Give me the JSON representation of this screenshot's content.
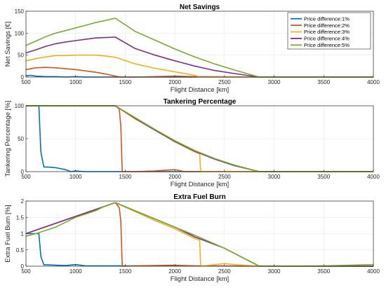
{
  "colors": {
    "series": [
      "#0072BD",
      "#D95319",
      "#EDB120",
      "#7E2F8E",
      "#77AC30"
    ],
    "grid": "#e6e6e6",
    "axis": "#262626"
  },
  "legend": {
    "entries": [
      "Price difference:1%",
      "Price difference:2%",
      "Price difference:3%",
      "Price difference:4%",
      "Price difference:5%"
    ]
  },
  "chart_data": [
    {
      "type": "line",
      "title": "Net Savings",
      "xlabel": "Flight Distance [km]",
      "ylabel": "Net Savings [€]",
      "xlim": [
        500,
        4000
      ],
      "ylim": [
        0,
        150
      ],
      "xticks": [
        500,
        1000,
        1500,
        2000,
        2500,
        3000,
        3500,
        4000
      ],
      "yticks": [
        0,
        50,
        100,
        150
      ],
      "grid": true,
      "legend_position": "top-right",
      "series": [
        {
          "name": "Price difference:1%",
          "x": [
            500,
            550,
            600,
            700,
            800,
            900,
            1000,
            1100,
            1200,
            1300,
            1400,
            1500,
            2000,
            2850,
            4000
          ],
          "y": [
            3,
            4,
            2,
            1,
            1,
            0,
            1,
            0,
            0,
            0,
            0,
            0,
            0,
            0,
            0
          ]
        },
        {
          "name": "Price difference:2%",
          "x": [
            500,
            550,
            600,
            700,
            800,
            900,
            1000,
            1100,
            1200,
            1300,
            1400,
            1460,
            1600,
            1800,
            2000,
            2200,
            2850,
            4000
          ],
          "y": [
            17,
            19,
            21,
            22,
            21,
            19,
            17,
            14,
            11,
            7,
            2,
            0,
            0,
            1,
            2,
            1,
            0,
            0
          ]
        },
        {
          "name": "Price difference:3%",
          "x": [
            500,
            600,
            700,
            800,
            900,
            1000,
            1100,
            1200,
            1300,
            1400,
            1600,
            1800,
            2000,
            2200,
            2250,
            2850,
            4000
          ],
          "y": [
            37,
            42,
            46,
            49,
            49,
            50,
            50,
            50,
            48,
            45,
            30,
            20,
            12,
            4,
            0,
            0,
            0
          ]
        },
        {
          "name": "Price difference:4%",
          "x": [
            500,
            600,
            700,
            800,
            900,
            1000,
            1100,
            1200,
            1300,
            1400,
            1600,
            1800,
            2000,
            2200,
            2400,
            2600,
            2850,
            4000
          ],
          "y": [
            55,
            62,
            70,
            76,
            80,
            83,
            86,
            89,
            90,
            91,
            65,
            50,
            37,
            25,
            15,
            8,
            0,
            0
          ]
        },
        {
          "name": "Price difference:5%",
          "x": [
            500,
            600,
            700,
            800,
            900,
            1000,
            1100,
            1200,
            1300,
            1400,
            1600,
            1800,
            2000,
            2200,
            2400,
            2600,
            2850,
            4000
          ],
          "y": [
            72,
            82,
            92,
            100,
            106,
            112,
            118,
            124,
            129,
            134,
            104,
            84,
            64,
            46,
            30,
            16,
            0,
            0
          ]
        }
      ]
    },
    {
      "type": "line",
      "title": "Tankering Percentage",
      "xlabel": "Flight Distance [km]",
      "ylabel": "Tankering Percentage [%]",
      "xlim": [
        500,
        4000
      ],
      "ylim": [
        0,
        100
      ],
      "xticks": [
        500,
        1000,
        1500,
        2000,
        2500,
        3000,
        3500,
        4000
      ],
      "yticks": [
        0,
        50,
        100
      ],
      "grid": true,
      "series": [
        {
          "name": "Price difference:1%",
          "x": [
            500,
            630,
            650,
            680,
            720,
            800,
            900,
            950,
            1000,
            1100,
            1200,
            1400,
            4000
          ],
          "y": [
            100,
            100,
            30,
            7,
            7,
            6,
            3,
            0,
            1,
            0,
            0,
            0,
            0
          ]
        },
        {
          "name": "Price difference:2%",
          "x": [
            500,
            1400,
            1440,
            1455,
            1470,
            1600,
            1800,
            1900,
            2000,
            2100,
            2850,
            4000
          ],
          "y": [
            100,
            100,
            95,
            70,
            0,
            0,
            1,
            2,
            3,
            0,
            0,
            0
          ]
        },
        {
          "name": "Price difference:3%",
          "x": [
            500,
            1400,
            1600,
            1800,
            2000,
            2200,
            2250,
            2260,
            4000
          ],
          "y": [
            100,
            100,
            80,
            63,
            45,
            30,
            27,
            0,
            0
          ]
        },
        {
          "name": "Price difference:4%",
          "x": [
            500,
            1400,
            1600,
            1800,
            2000,
            2200,
            2400,
            2600,
            2850,
            4000
          ],
          "y": [
            100,
            100,
            81,
            63,
            46,
            31,
            19,
            9,
            0,
            0
          ]
        },
        {
          "name": "Price difference:5%",
          "x": [
            500,
            1400,
            1600,
            1800,
            2000,
            2200,
            2400,
            2600,
            2850,
            4000
          ],
          "y": [
            100,
            100,
            82,
            64,
            47,
            32,
            20,
            10,
            0,
            0
          ]
        }
      ]
    },
    {
      "type": "line",
      "title": "Extra Fuel Burn",
      "xlabel": "Flight Distance [km]",
      "ylabel": "Extra Fuel Burn [%]",
      "xlim": [
        500,
        4000
      ],
      "ylim": [
        0,
        2
      ],
      "xticks": [
        500,
        1000,
        1500,
        2000,
        2500,
        3000,
        3500,
        4000
      ],
      "yticks": [
        0,
        0.5,
        1,
        1.5,
        2
      ],
      "grid": true,
      "series": [
        {
          "name": "Price difference:1%",
          "x": [
            500,
            630,
            650,
            680,
            720,
            800,
            900,
            1000,
            1100,
            1200,
            1400,
            4000
          ],
          "y": [
            1.0,
            1.0,
            0.3,
            0.04,
            0.04,
            0.03,
            0.02,
            0.05,
            0.01,
            0.01,
            0.01,
            0.0
          ]
        },
        {
          "name": "Price difference:2%",
          "x": [
            500,
            1400,
            1440,
            1455,
            1470,
            1600,
            1800,
            2000,
            2200,
            2850,
            4000
          ],
          "y": [
            1.0,
            1.95,
            1.8,
            1.4,
            0.0,
            0.01,
            0.02,
            0.03,
            0.01,
            0.0,
            0.0
          ]
        },
        {
          "name": "Price difference:3%",
          "x": [
            500,
            1400,
            1800,
            2000,
            2200,
            2250,
            2260,
            2500,
            2600,
            2850,
            4000
          ],
          "y": [
            1.0,
            1.95,
            1.4,
            1.15,
            0.85,
            0.8,
            0.0,
            0.08,
            0.05,
            0.0,
            0.0
          ]
        },
        {
          "name": "Price difference:4%",
          "x": [
            500,
            1400,
            1800,
            2000,
            2200,
            2500,
            2850,
            4000
          ],
          "y": [
            1.0,
            1.95,
            1.45,
            1.2,
            0.9,
            0.55,
            0.0,
            0.0
          ]
        },
        {
          "name": "Price difference:5%",
          "x": [
            500,
            600,
            700,
            800,
            900,
            1000,
            1100,
            1200,
            1300,
            1400,
            1600,
            1800,
            2000,
            2200,
            2500,
            2850,
            3500,
            4000
          ],
          "y": [
            0.92,
            1.0,
            1.1,
            1.2,
            1.35,
            1.5,
            1.6,
            1.7,
            1.85,
            1.95,
            1.7,
            1.45,
            1.2,
            0.95,
            0.55,
            0.0,
            0.01,
            0.05
          ]
        }
      ]
    }
  ]
}
